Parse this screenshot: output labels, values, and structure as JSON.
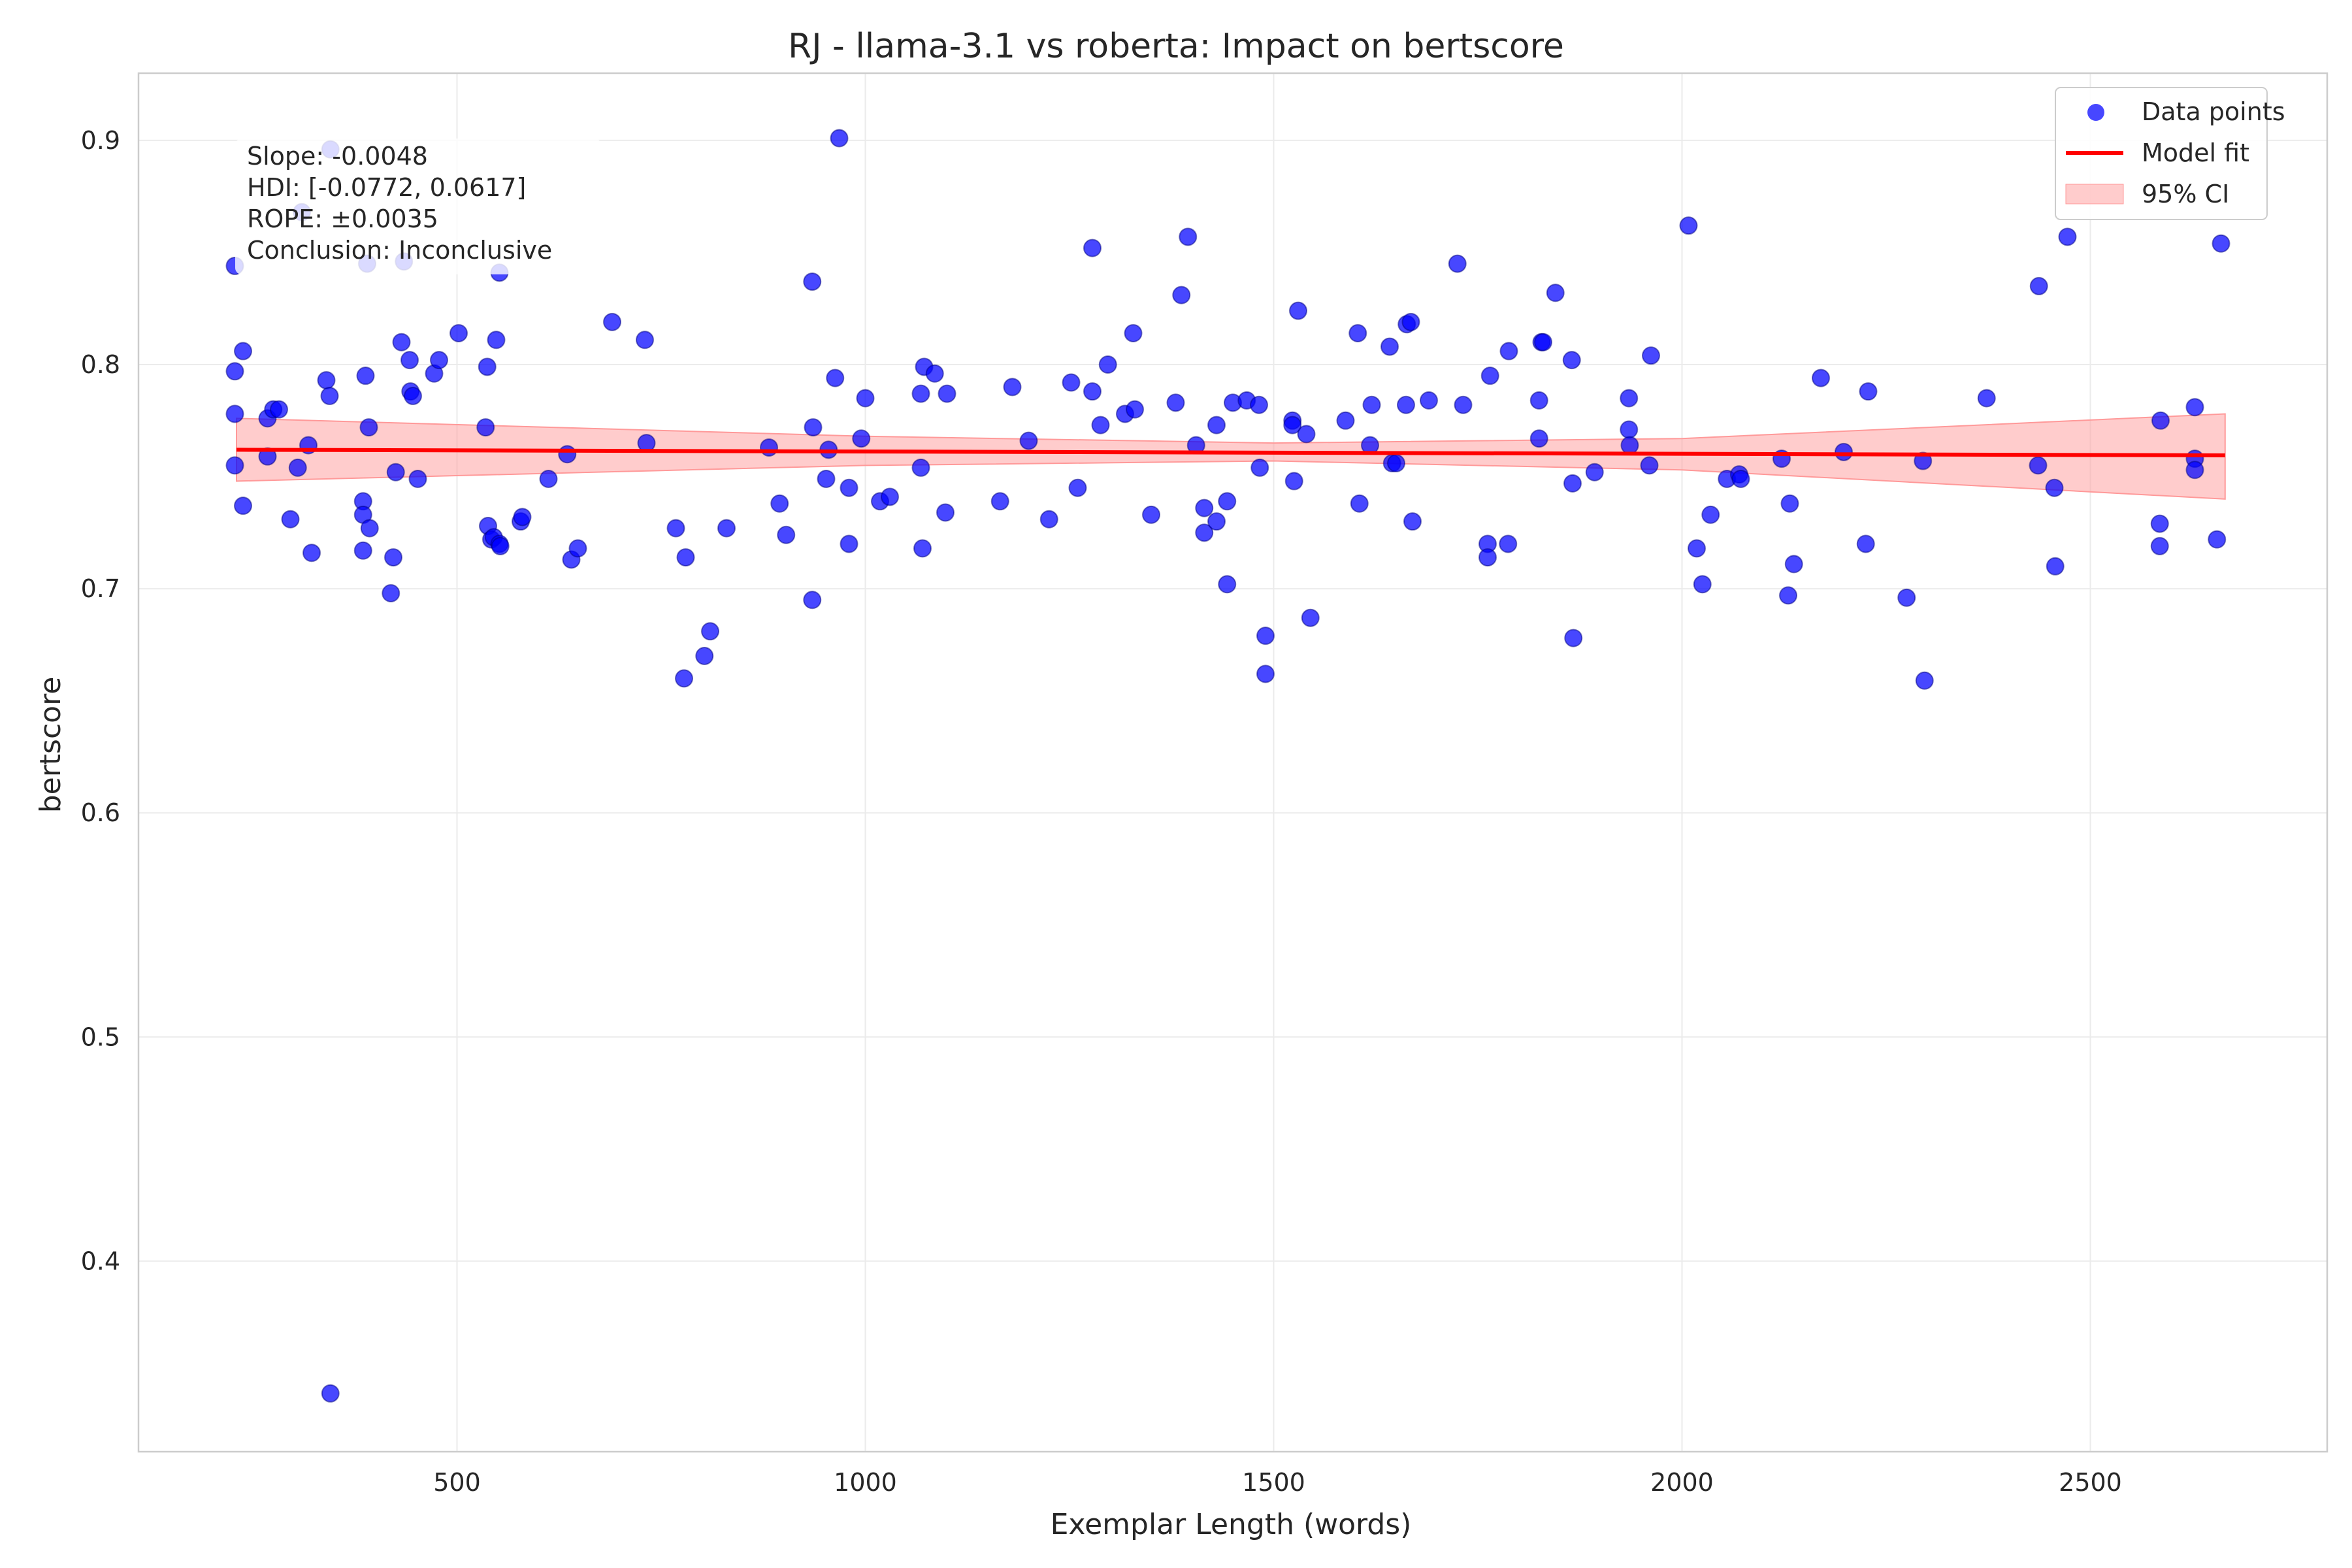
{
  "chart_data": {
    "type": "scatter",
    "title": "RJ - llama-3.1 vs roberta: Impact on bertscore",
    "xlabel": "Exemplar Length (words)",
    "ylabel": "bertscore",
    "xlim": [
      110,
      2790
    ],
    "ylim": [
      0.315,
      0.93
    ],
    "xticks": [
      500,
      1000,
      1500,
      2000,
      2500
    ],
    "yticks": [
      0.4,
      0.5,
      0.6,
      0.7,
      0.8,
      0.9
    ],
    "xtick_labels": [
      "500",
      "1000",
      "1500",
      "2000",
      "2500"
    ],
    "ytick_labels": [
      "0.4",
      "0.5",
      "0.6",
      "0.7",
      "0.8",
      "0.9"
    ],
    "grid": true,
    "legend_position": "top-right",
    "legend": {
      "points": "Data points",
      "fit": "Model fit",
      "ci": "95% CI"
    },
    "colors": {
      "points": "#0000ff",
      "fit": "#ff0000",
      "ci": "#ff9999"
    },
    "annotation": {
      "slope": "Slope: -0.0048",
      "hdi": "HDI: [-0.0772, 0.0617]",
      "rope": "ROPE: ±0.0035",
      "conclusion": "Conclusion: Inconclusive"
    },
    "fit": {
      "x": [
        230,
        2665
      ],
      "y": [
        0.762,
        0.7595
      ]
    },
    "ci_band": {
      "x": [
        230,
        1000,
        1500,
        2000,
        2665
      ],
      "lower": [
        0.748,
        0.755,
        0.757,
        0.753,
        0.74
      ],
      "upper": [
        0.776,
        0.768,
        0.765,
        0.767,
        0.778
      ]
    },
    "points": [
      [
        228,
        0.844
      ],
      [
        228,
        0.797
      ],
      [
        228,
        0.778
      ],
      [
        228,
        0.755
      ],
      [
        238,
        0.806
      ],
      [
        238,
        0.737
      ],
      [
        268,
        0.759
      ],
      [
        268,
        0.776
      ],
      [
        275,
        0.78
      ],
      [
        282,
        0.78
      ],
      [
        296,
        0.731
      ],
      [
        305,
        0.754
      ],
      [
        310,
        0.868
      ],
      [
        318,
        0.764
      ],
      [
        322,
        0.716
      ],
      [
        340,
        0.793
      ],
      [
        344,
        0.786
      ],
      [
        345,
        0.341
      ],
      [
        345,
        0.896
      ],
      [
        385,
        0.739
      ],
      [
        385,
        0.733
      ],
      [
        385,
        0.717
      ],
      [
        388,
        0.795
      ],
      [
        390,
        0.845
      ],
      [
        392,
        0.772
      ],
      [
        393,
        0.727
      ],
      [
        419,
        0.698
      ],
      [
        422,
        0.714
      ],
      [
        425,
        0.752
      ],
      [
        432,
        0.81
      ],
      [
        435,
        0.846
      ],
      [
        442,
        0.802
      ],
      [
        443,
        0.788
      ],
      [
        446,
        0.786
      ],
      [
        452,
        0.749
      ],
      [
        472,
        0.796
      ],
      [
        478,
        0.802
      ],
      [
        502,
        0.814
      ],
      [
        535,
        0.772
      ],
      [
        537,
        0.799
      ],
      [
        538,
        0.728
      ],
      [
        542,
        0.722
      ],
      [
        545,
        0.723
      ],
      [
        548,
        0.811
      ],
      [
        552,
        0.72
      ],
      [
        553,
        0.719
      ],
      [
        552,
        0.841
      ],
      [
        578,
        0.73
      ],
      [
        580,
        0.732
      ],
      [
        612,
        0.749
      ],
      [
        635,
        0.76
      ],
      [
        640,
        0.713
      ],
      [
        648,
        0.718
      ],
      [
        690,
        0.819
      ],
      [
        730,
        0.811
      ],
      [
        732,
        0.765
      ],
      [
        768,
        0.727
      ],
      [
        778,
        0.66
      ],
      [
        780,
        0.714
      ],
      [
        803,
        0.67
      ],
      [
        810,
        0.681
      ],
      [
        830,
        0.727
      ],
      [
        882,
        0.763
      ],
      [
        895,
        0.738
      ],
      [
        903,
        0.724
      ],
      [
        935,
        0.695
      ],
      [
        935,
        0.837
      ],
      [
        936,
        0.772
      ],
      [
        952,
        0.749
      ],
      [
        955,
        0.762
      ],
      [
        963,
        0.794
      ],
      [
        968,
        0.901
      ],
      [
        980,
        0.72
      ],
      [
        980,
        0.745
      ],
      [
        995,
        0.767
      ],
      [
        1000,
        0.785
      ],
      [
        1018,
        0.739
      ],
      [
        1030,
        0.741
      ],
      [
        1068,
        0.787
      ],
      [
        1068,
        0.754
      ],
      [
        1070,
        0.718
      ],
      [
        1072,
        0.799
      ],
      [
        1085,
        0.796
      ],
      [
        1098,
        0.734
      ],
      [
        1100,
        0.787
      ],
      [
        1165,
        0.739
      ],
      [
        1180,
        0.79
      ],
      [
        1200,
        0.766
      ],
      [
        1225,
        0.731
      ],
      [
        1252,
        0.792
      ],
      [
        1260,
        0.745
      ],
      [
        1278,
        0.852
      ],
      [
        1278,
        0.788
      ],
      [
        1288,
        0.773
      ],
      [
        1297,
        0.8
      ],
      [
        1318,
        0.778
      ],
      [
        1328,
        0.814
      ],
      [
        1330,
        0.78
      ],
      [
        1350,
        0.733
      ],
      [
        1380,
        0.783
      ],
      [
        1387,
        0.831
      ],
      [
        1395,
        0.857
      ],
      [
        1405,
        0.764
      ],
      [
        1415,
        0.736
      ],
      [
        1415,
        0.725
      ],
      [
        1430,
        0.73
      ],
      [
        1430,
        0.773
      ],
      [
        1443,
        0.702
      ],
      [
        1443,
        0.739
      ],
      [
        1450,
        0.783
      ],
      [
        1467,
        0.784
      ],
      [
        1482,
        0.782
      ],
      [
        1483,
        0.754
      ],
      [
        1490,
        0.662
      ],
      [
        1490,
        0.679
      ],
      [
        1523,
        0.775
      ],
      [
        1523,
        0.773
      ],
      [
        1525,
        0.748
      ],
      [
        1530,
        0.824
      ],
      [
        1540,
        0.769
      ],
      [
        1545,
        0.687
      ],
      [
        1588,
        0.775
      ],
      [
        1603,
        0.814
      ],
      [
        1605,
        0.738
      ],
      [
        1618,
        0.764
      ],
      [
        1620,
        0.782
      ],
      [
        1642,
        0.808
      ],
      [
        1645,
        0.756
      ],
      [
        1650,
        0.756
      ],
      [
        1662,
        0.782
      ],
      [
        1663,
        0.818
      ],
      [
        1668,
        0.819
      ],
      [
        1670,
        0.73
      ],
      [
        1690,
        0.784
      ],
      [
        1725,
        0.845
      ],
      [
        1732,
        0.782
      ],
      [
        1762,
        0.72
      ],
      [
        1762,
        0.714
      ],
      [
        1765,
        0.795
      ],
      [
        1787,
        0.72
      ],
      [
        1788,
        0.806
      ],
      [
        1825,
        0.767
      ],
      [
        1825,
        0.784
      ],
      [
        1828,
        0.81
      ],
      [
        1830,
        0.81
      ],
      [
        1845,
        0.832
      ],
      [
        1865,
        0.802
      ],
      [
        1866,
        0.747
      ],
      [
        1867,
        0.678
      ],
      [
        1893,
        0.752
      ],
      [
        1935,
        0.771
      ],
      [
        1935,
        0.785
      ],
      [
        1936,
        0.764
      ],
      [
        1960,
        0.755
      ],
      [
        1962,
        0.804
      ],
      [
        2008,
        0.862
      ],
      [
        2018,
        0.718
      ],
      [
        2025,
        0.702
      ],
      [
        2035,
        0.733
      ],
      [
        2055,
        0.749
      ],
      [
        2070,
        0.751
      ],
      [
        2072,
        0.749
      ],
      [
        2122,
        0.758
      ],
      [
        2130,
        0.697
      ],
      [
        2132,
        0.738
      ],
      [
        2137,
        0.711
      ],
      [
        2170,
        0.794
      ],
      [
        2198,
        0.761
      ],
      [
        2225,
        0.72
      ],
      [
        2228,
        0.788
      ],
      [
        2275,
        0.696
      ],
      [
        2295,
        0.757
      ],
      [
        2297,
        0.659
      ],
      [
        2373,
        0.785
      ],
      [
        2436,
        0.755
      ],
      [
        2437,
        0.835
      ],
      [
        2456,
        0.745
      ],
      [
        2457,
        0.71
      ],
      [
        2472,
        0.857
      ],
      [
        2585,
        0.729
      ],
      [
        2585,
        0.719
      ],
      [
        2586,
        0.775
      ],
      [
        2628,
        0.781
      ],
      [
        2628,
        0.758
      ],
      [
        2628,
        0.753
      ],
      [
        2655,
        0.722
      ],
      [
        2660,
        0.854
      ]
    ]
  }
}
